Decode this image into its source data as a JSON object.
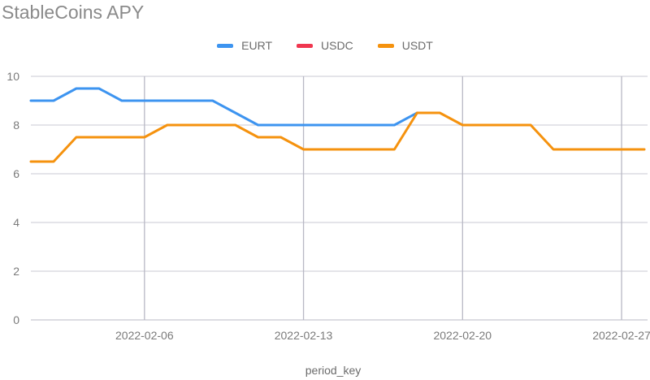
{
  "chart_data": {
    "type": "line",
    "title": "StableCoins APY",
    "xlabel": "period_key",
    "ylabel": "",
    "ylim": [
      0,
      10
    ],
    "yticks": [
      "0",
      "2",
      "4",
      "6",
      "8",
      "10"
    ],
    "x_ticks": [
      "2022-02-06",
      "2022-02-13",
      "2022-02-20",
      "2022-02-27"
    ],
    "x_tick_day_index": [
      5,
      12,
      19,
      26
    ],
    "x_range_day_index": [
      0,
      27
    ],
    "x_day_index": [
      0,
      1,
      2,
      3,
      4,
      5,
      6,
      7,
      8,
      9,
      10,
      11,
      12,
      13,
      14,
      15,
      16,
      17,
      18,
      19,
      20,
      21,
      22,
      23,
      24,
      25,
      26,
      27
    ],
    "series": [
      {
        "name": "EURT",
        "color": "#3d94f0",
        "values": [
          9,
          9,
          9.5,
          9.5,
          9,
          9,
          9,
          9,
          9,
          8.5,
          8,
          8,
          8,
          8,
          8,
          8,
          8,
          8.5,
          null,
          null,
          null,
          null,
          null,
          null,
          null,
          null,
          null,
          null
        ]
      },
      {
        "name": "USDC",
        "color": "#f0364f",
        "values": []
      },
      {
        "name": "USDT",
        "color": "#f5920e",
        "values": [
          6.5,
          6.5,
          7.5,
          7.5,
          7.5,
          7.5,
          8,
          8,
          8,
          8,
          7.5,
          7.5,
          7,
          7,
          7,
          7,
          7,
          8.5,
          8.5,
          8,
          8,
          8,
          8,
          7,
          7,
          7,
          7,
          7
        ]
      }
    ],
    "grid": true,
    "legend_position": "top"
  }
}
